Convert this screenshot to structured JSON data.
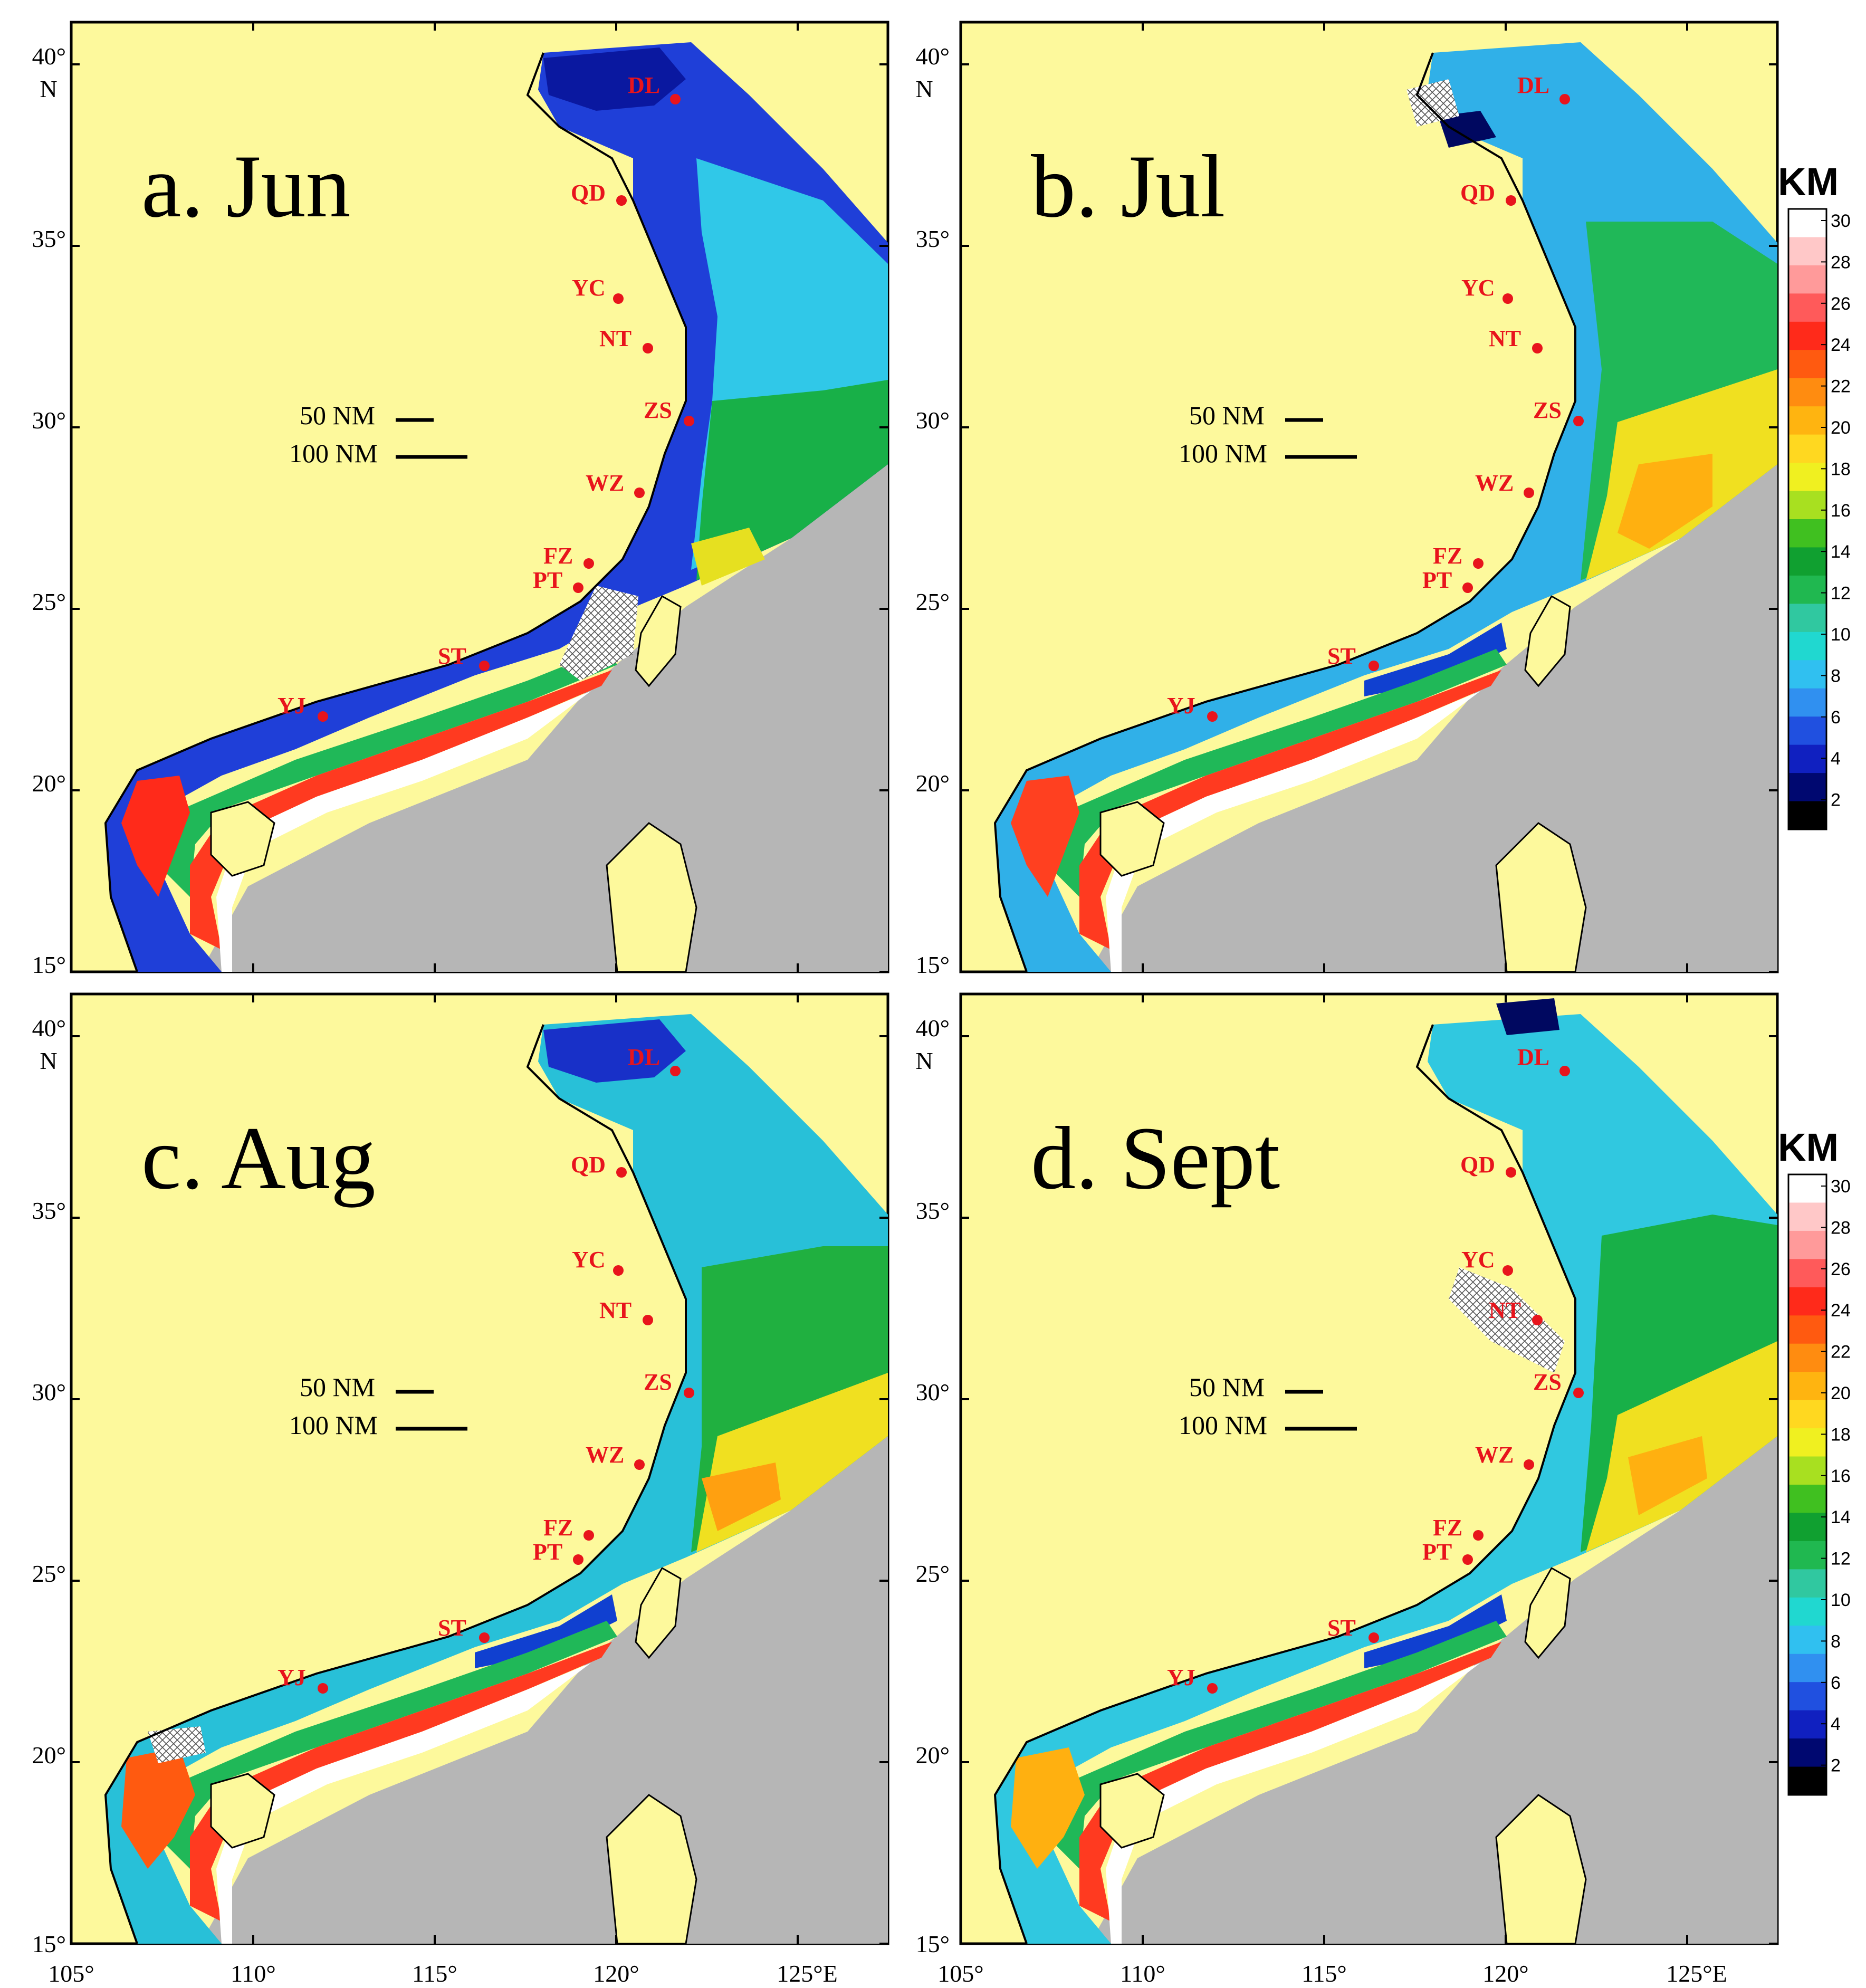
{
  "panels": [
    {
      "id": "jun",
      "title": "a. Jun"
    },
    {
      "id": "jul",
      "title": "b. Jul"
    },
    {
      "id": "aug",
      "title": "c. Aug"
    },
    {
      "id": "sept",
      "title": "d. Sept"
    }
  ],
  "axes": {
    "lon_ticks": [
      "105°",
      "110°",
      "115°",
      "120°",
      "125°E"
    ],
    "lat_ticks": [
      "15°",
      "20°",
      "25°",
      "30°",
      "35°",
      "40°"
    ],
    "lat_unit": "N"
  },
  "cities": [
    "DL",
    "QD",
    "YC",
    "NT",
    "ZS",
    "WZ",
    "FZ",
    "PT",
    "ST",
    "YJ"
  ],
  "scale_bars": {
    "short": "50 NM",
    "long": "100 NM"
  },
  "colorbar": {
    "title": "KM",
    "ticks": [
      "30",
      "28",
      "26",
      "24",
      "22",
      "20",
      "18",
      "16",
      "14",
      "12",
      "10",
      "8",
      "6",
      "4",
      "2"
    ],
    "colors": [
      "#ffffff",
      "#ffc8c8",
      "#ff9a9a",
      "#ff5a5a",
      "#ff2a1a",
      "#ff5a10",
      "#ff8c10",
      "#ffb410",
      "#ffd820",
      "#f0f020",
      "#a8e020",
      "#40c020",
      "#10a030",
      "#20b850",
      "#30c8a0",
      "#20d8d0",
      "#30c0f0",
      "#3090f0",
      "#2050e0",
      "#1020c0",
      "#000870",
      "#000000"
    ]
  }
}
